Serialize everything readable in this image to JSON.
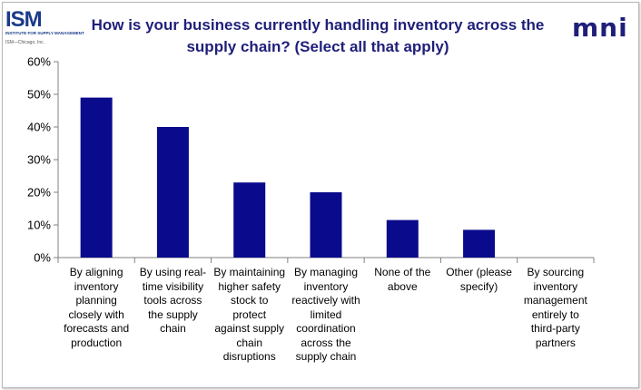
{
  "header": {
    "title_line1": "How is your business currently handling inventory across the",
    "title_line2": "supply chain? (Select all that apply)",
    "logo_left": {
      "text": "ISM",
      "subtitle": "INSTITUTE FOR SUPPLY MANAGEMENT",
      "copyright": "ISM—Chicago, Inc.",
      "color": "#1a3a8a"
    },
    "logo_right": {
      "text": "mni",
      "color": "#1f1f7a"
    }
  },
  "chart_data": {
    "type": "bar",
    "categories": [
      "By aligning inventory planning closely with forecasts and production",
      "By using real-time visibility tools across the supply chain",
      "By maintaining higher safety stock to protect against supply chain disruptions",
      "By managing inventory reactively with limited coordination across the supply chain",
      "None of the above",
      "Other (please specify)",
      "By sourcing inventory management entirely to third-party partners"
    ],
    "category_lines": [
      [
        "By aligning",
        "inventory",
        "planning",
        "closely with",
        "forecasts and",
        "production"
      ],
      [
        "By using real-",
        "time visibility",
        "tools across",
        "the supply",
        "chain"
      ],
      [
        "By maintaining",
        "higher safety",
        "stock to",
        "protect",
        "against supply",
        "chain",
        "disruptions"
      ],
      [
        "By managing",
        "inventory",
        "reactively with",
        "limited",
        "coordination",
        "across the",
        "supply chain"
      ],
      [
        "None of the",
        "above"
      ],
      [
        "Other (please",
        "specify)"
      ],
      [
        "By sourcing",
        "inventory",
        "management",
        "entirely to",
        "third-party",
        "partners"
      ]
    ],
    "values": [
      49,
      40,
      23,
      20,
      11.5,
      8.5,
      0
    ],
    "ylim": [
      0,
      60
    ],
    "yticks": [
      0,
      10,
      20,
      30,
      40,
      50,
      60
    ],
    "ytick_labels": [
      "0%",
      "10%",
      "20%",
      "30%",
      "40%",
      "50%",
      "60%"
    ],
    "bar_color": "#0a0a8c",
    "grid": false,
    "legend": "none",
    "xlabel": "",
    "ylabel": ""
  }
}
